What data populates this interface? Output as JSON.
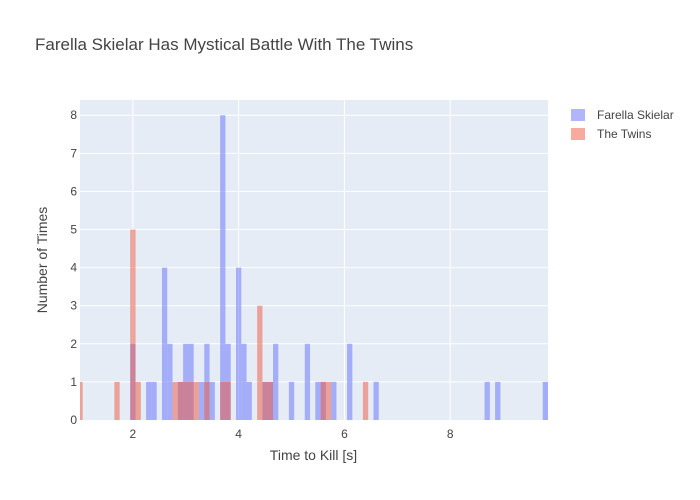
{
  "chart_data": {
    "type": "bar",
    "title": "Farella Skielar Has Mystical Battle With The Twins",
    "xlabel": "Time to Kill [s]",
    "ylabel": "Number of Times",
    "xlim": [
      1.0,
      9.85
    ],
    "ylim": [
      0,
      8.4
    ],
    "xticks": [
      2,
      4,
      6,
      8
    ],
    "yticks": [
      0,
      1,
      2,
      3,
      4,
      5,
      6,
      7,
      8
    ],
    "bin_width": 0.1,
    "barmode": "overlay",
    "grid": true,
    "legend_position": "top-right",
    "series": [
      {
        "name": "Farella Skielar",
        "color": "#636efa",
        "opacity": 0.5,
        "bins": [
          {
            "x": 2.0,
            "y": 2
          },
          {
            "x": 2.3,
            "y": 1
          },
          {
            "x": 2.4,
            "y": 1
          },
          {
            "x": 2.6,
            "y": 4
          },
          {
            "x": 2.7,
            "y": 2
          },
          {
            "x": 2.9,
            "y": 1
          },
          {
            "x": 3.0,
            "y": 2
          },
          {
            "x": 3.1,
            "y": 2
          },
          {
            "x": 3.3,
            "y": 1
          },
          {
            "x": 3.4,
            "y": 2
          },
          {
            "x": 3.5,
            "y": 1
          },
          {
            "x": 3.7,
            "y": 8
          },
          {
            "x": 3.8,
            "y": 2
          },
          {
            "x": 4.0,
            "y": 4
          },
          {
            "x": 4.1,
            "y": 2
          },
          {
            "x": 4.2,
            "y": 1
          },
          {
            "x": 4.5,
            "y": 1
          },
          {
            "x": 4.6,
            "y": 1
          },
          {
            "x": 4.7,
            "y": 2
          },
          {
            "x": 5.0,
            "y": 1
          },
          {
            "x": 5.3,
            "y": 2
          },
          {
            "x": 5.5,
            "y": 1
          },
          {
            "x": 5.6,
            "y": 1
          },
          {
            "x": 5.8,
            "y": 1
          },
          {
            "x": 6.1,
            "y": 2
          },
          {
            "x": 6.6,
            "y": 1
          },
          {
            "x": 8.7,
            "y": 1
          },
          {
            "x": 8.9,
            "y": 1
          },
          {
            "x": 9.8,
            "y": 1
          }
        ]
      },
      {
        "name": "The Twins",
        "color": "#ef553b",
        "opacity": 0.5,
        "bins": [
          {
            "x": 1.0,
            "y": 1
          },
          {
            "x": 1.7,
            "y": 1
          },
          {
            "x": 2.0,
            "y": 5
          },
          {
            "x": 2.1,
            "y": 1
          },
          {
            "x": 2.8,
            "y": 1
          },
          {
            "x": 2.9,
            "y": 1
          },
          {
            "x": 3.0,
            "y": 1
          },
          {
            "x": 3.1,
            "y": 1
          },
          {
            "x": 3.2,
            "y": 1
          },
          {
            "x": 3.4,
            "y": 1
          },
          {
            "x": 3.7,
            "y": 1
          },
          {
            "x": 3.8,
            "y": 1
          },
          {
            "x": 4.4,
            "y": 3
          },
          {
            "x": 4.5,
            "y": 1
          },
          {
            "x": 4.6,
            "y": 1
          },
          {
            "x": 5.6,
            "y": 1
          },
          {
            "x": 5.7,
            "y": 1
          },
          {
            "x": 6.4,
            "y": 1
          }
        ]
      }
    ]
  }
}
